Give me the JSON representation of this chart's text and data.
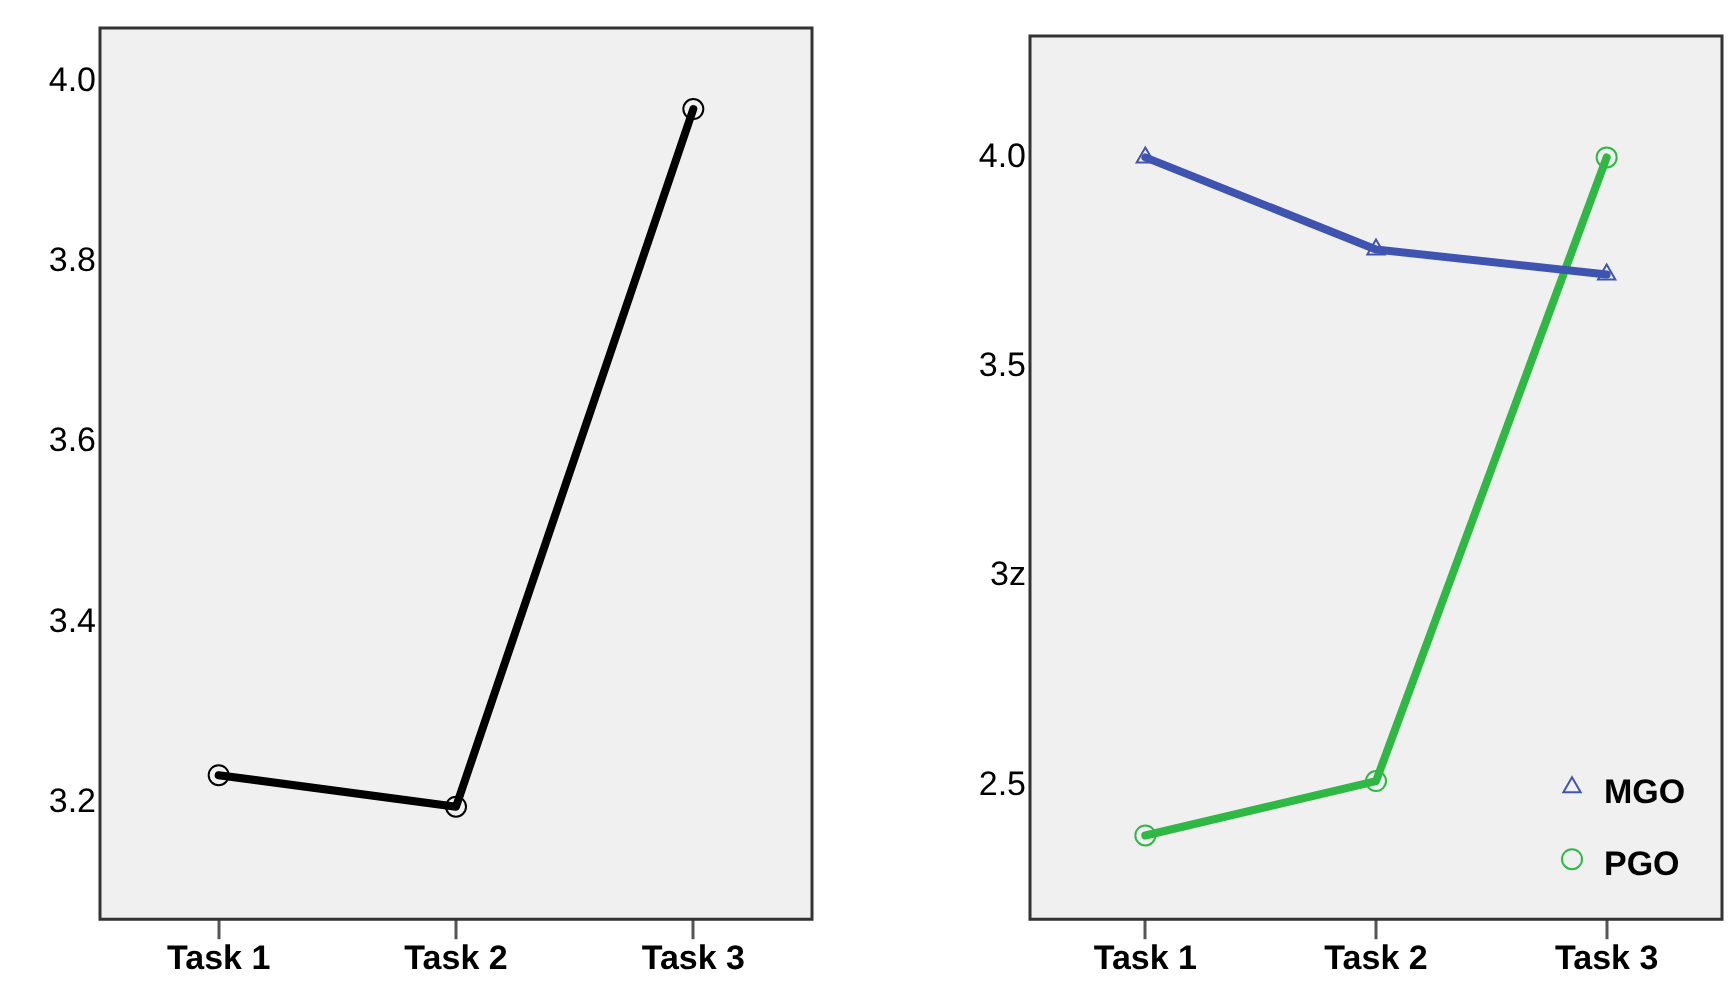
{
  "chart_data": [
    {
      "type": "line",
      "categories": [
        "Task 1",
        "Task 2",
        "Task 3"
      ],
      "series": [
        {
          "color": "#000000",
          "values": [
            3.23,
            3.195,
            3.97
          ]
        }
      ],
      "ylim": [
        3.07,
        4.06
      ],
      "yticks": [
        3.2,
        3.4,
        3.6,
        3.8,
        {
          "value": 4.0,
          "label": "4.0"
        }
      ],
      "grid": false,
      "legend": false,
      "marker": "circle"
    },
    {
      "type": "line",
      "categories": [
        "Task 1",
        "Task 2",
        "Task 3"
      ],
      "series": [
        {
          "name": "MGO",
          "color": "#3f54b0",
          "values": [
            4.0,
            3.78,
            3.72
          ],
          "marker": "triangle"
        },
        {
          "name": "PGO",
          "color": "#2fb844",
          "values": [
            2.38,
            2.51,
            4.0
          ],
          "marker": "circle"
        }
      ],
      "ylim": [
        2.18,
        4.29
      ],
      "yticks": [
        {
          "value": 2.5,
          "label": "2.5"
        },
        {
          "value": 3.0,
          "label": "3z"
        },
        {
          "value": 3.5,
          "label": "3.5"
        },
        {
          "value": 4.0,
          "label": "4.0"
        }
      ],
      "grid": false,
      "legend": "bottom right"
    }
  ]
}
